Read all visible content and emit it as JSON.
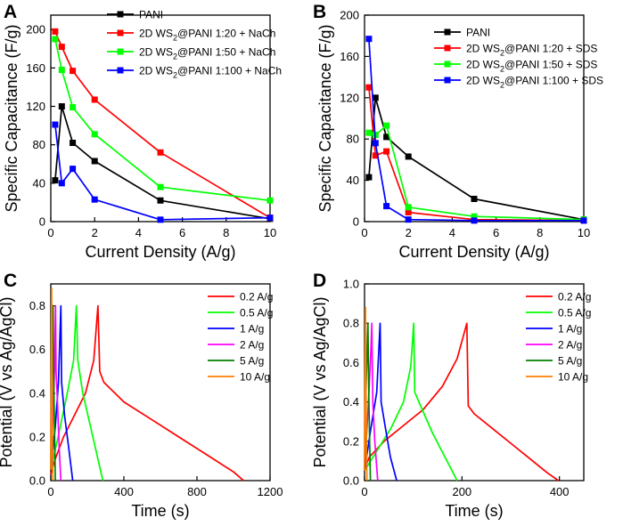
{
  "chart_data": [
    {
      "panel": "A",
      "type": "line",
      "xlabel": "Current Density (A/g)",
      "ylabel": "Specific Capacitance (F/g)",
      "xlim": [
        0,
        10
      ],
      "ylim": [
        0,
        215
      ],
      "xticks": [
        "0",
        "2",
        "4",
        "6",
        "8",
        "10"
      ],
      "yticks": [
        "0",
        "40",
        "80",
        "120",
        "160",
        "200"
      ],
      "legend_position": "top-right",
      "series": [
        {
          "name": "PANI",
          "legend": {
            "pre": "PANI",
            "sub": "",
            "post": ""
          },
          "color": "#000000",
          "x": [
            0.2,
            0.5,
            1,
            2,
            5,
            10
          ],
          "y": [
            43,
            120,
            82,
            63,
            22,
            3
          ]
        },
        {
          "name": "2D WS2@PANI 1:20 + NaCh",
          "legend": {
            "pre": "2D WS",
            "sub": "2",
            "post": "@PANI 1:20 + NaCh"
          },
          "color": "#ff0000",
          "x": [
            0.2,
            0.5,
            1,
            2,
            5,
            10
          ],
          "y": [
            198,
            182,
            157,
            127,
            72,
            4
          ]
        },
        {
          "name": "2D WS2@PANI 1:50 + NaCh",
          "legend": {
            "pre": "2D WS",
            "sub": "2",
            "post": "@PANI 1:50 + NaCh"
          },
          "color": "#00ff00",
          "x": [
            0.2,
            0.5,
            1,
            2,
            5,
            10
          ],
          "y": [
            190,
            158,
            119,
            91,
            36,
            22
          ]
        },
        {
          "name": "2D WS2@PANI 1:100 + NaCh",
          "legend": {
            "pre": "2D WS",
            "sub": "2",
            "post": "@PANI 1:100 + NaCh"
          },
          "color": "#0000ff",
          "x": [
            0.2,
            0.5,
            1,
            2,
            5,
            10
          ],
          "y": [
            101,
            40,
            55,
            23,
            2,
            4
          ]
        }
      ]
    },
    {
      "panel": "B",
      "type": "line",
      "xlabel": "Current Density (A/g)",
      "ylabel": "Specific Capacitance (F/g)",
      "xlim": [
        0,
        10
      ],
      "ylim": [
        0,
        200
      ],
      "xticks": [
        "0",
        "2",
        "4",
        "6",
        "8",
        "10"
      ],
      "yticks": [
        "0",
        "40",
        "80",
        "120",
        "160",
        "200"
      ],
      "legend_position": "top-right",
      "series": [
        {
          "name": "PANI",
          "legend": {
            "pre": "PANI",
            "sub": "",
            "post": ""
          },
          "color": "#000000",
          "x": [
            0.2,
            0.5,
            1,
            2,
            5,
            10
          ],
          "y": [
            43,
            120,
            82,
            63,
            22,
            2
          ]
        },
        {
          "name": "2D WS2@PANI 1:20 + SDS",
          "legend": {
            "pre": "2D WS",
            "sub": "2",
            "post": "@PANI 1:20 + SDS"
          },
          "color": "#ff0000",
          "x": [
            0.2,
            0.5,
            1,
            2,
            5,
            10
          ],
          "y": [
            130,
            64,
            68,
            9,
            2,
            1
          ]
        },
        {
          "name": "2D WS2@PANI 1:50 + SDS",
          "legend": {
            "pre": "2D WS",
            "sub": "2",
            "post": "@PANI 1:50 + SDS"
          },
          "color": "#00ff00",
          "x": [
            0.2,
            0.5,
            1,
            2,
            5,
            10
          ],
          "y": [
            86,
            84,
            93,
            14,
            5,
            2
          ]
        },
        {
          "name": "2D WS2@PANI 1:100 + SDS",
          "legend": {
            "pre": "2D WS",
            "sub": "2",
            "post": "@PANI 1:100 + SDS"
          },
          "color": "#0000ff",
          "x": [
            0.2,
            0.5,
            1,
            2,
            5,
            10
          ],
          "y": [
            177,
            76,
            15,
            2,
            1,
            1
          ]
        }
      ]
    },
    {
      "panel": "C",
      "type": "line",
      "xlabel": "Time (s)",
      "ylabel": "Potential (V vs Ag/AgCl)",
      "xlim": [
        0,
        1200
      ],
      "ylim": [
        0,
        0.9
      ],
      "xticks": [
        "0",
        "400",
        "800",
        "1200"
      ],
      "yticks": [
        "0.0",
        "0.2",
        "0.4",
        "0.6",
        "0.8"
      ],
      "legend_position": "top-right",
      "series": [
        {
          "name": "0.2 A/g",
          "color": "#ff0000",
          "x": [
            0,
            25,
            70,
            130,
            190,
            235,
            258,
            268,
            290,
            400,
            550,
            700,
            850,
            1000,
            1055
          ],
          "y": [
            0.03,
            0.1,
            0.2,
            0.3,
            0.4,
            0.55,
            0.8,
            0.5,
            0.45,
            0.36,
            0.28,
            0.2,
            0.12,
            0.04,
            0
          ]
        },
        {
          "name": "0.5 A/g",
          "color": "#00ff00",
          "x": [
            0,
            40,
            90,
            125,
            140,
            148,
            175,
            230,
            285
          ],
          "y": [
            0.05,
            0.2,
            0.4,
            0.55,
            0.8,
            0.55,
            0.4,
            0.2,
            0
          ]
        },
        {
          "name": "1 A/g",
          "color": "#0000ff",
          "x": [
            0,
            25,
            42,
            55,
            59,
            75,
            98,
            120
          ],
          "y": [
            0.05,
            0.25,
            0.45,
            0.8,
            0.45,
            0.3,
            0.15,
            0
          ]
        },
        {
          "name": "2 A/g",
          "color": "#ff00ff",
          "x": [
            0,
            12,
            20,
            26,
            29,
            37,
            46,
            55
          ],
          "y": [
            0.05,
            0.3,
            0.5,
            0.8,
            0.5,
            0.35,
            0.15,
            0
          ]
        },
        {
          "name": "5 A/g",
          "color": "#008000",
          "x": [
            0,
            5,
            10,
            12,
            15,
            20,
            25
          ],
          "y": [
            0.05,
            0.4,
            0.6,
            0.8,
            0.5,
            0.25,
            0
          ]
        },
        {
          "name": "10 A/g",
          "color": "#ff8000",
          "x": [
            0,
            2,
            5,
            7,
            9,
            11
          ],
          "y": [
            0.05,
            0.4,
            0.88,
            0.5,
            0.25,
            0
          ]
        }
      ]
    },
    {
      "panel": "D",
      "type": "line",
      "xlabel": "Time (s)",
      "ylabel": "Potential (V vs Ag/AgCl)",
      "xlim": [
        0,
        450
      ],
      "ylim": [
        0,
        1.0
      ],
      "xticks": [
        "0",
        "200",
        "400"
      ],
      "yticks": [
        "0.0",
        "0.2",
        "0.4",
        "0.6",
        "0.8",
        "1.0"
      ],
      "legend_position": "top-right",
      "series": [
        {
          "name": "0.2 A/g",
          "color": "#ff0000",
          "x": [
            0,
            10,
            40,
            80,
            120,
            160,
            190,
            210,
            213,
            225,
            260,
            300,
            340,
            375,
            398
          ],
          "y": [
            0.06,
            0.12,
            0.2,
            0.28,
            0.36,
            0.48,
            0.62,
            0.8,
            0.38,
            0.34,
            0.27,
            0.19,
            0.11,
            0.04,
            0
          ]
        },
        {
          "name": "0.5 A/g",
          "color": "#00ff00",
          "x": [
            0,
            25,
            55,
            80,
            95,
            101,
            103,
            115,
            140,
            165,
            190
          ],
          "y": [
            0.05,
            0.15,
            0.27,
            0.4,
            0.58,
            0.8,
            0.45,
            0.38,
            0.24,
            0.12,
            0
          ]
        },
        {
          "name": "1 A/g",
          "color": "#0000ff",
          "x": [
            0,
            12,
            25,
            32,
            34,
            42,
            53,
            66
          ],
          "y": [
            0.05,
            0.25,
            0.45,
            0.8,
            0.4,
            0.28,
            0.12,
            0
          ]
        },
        {
          "name": "2 A/g",
          "color": "#ff00ff",
          "x": [
            0,
            7,
            12,
            15,
            17,
            21,
            27
          ],
          "y": [
            0.05,
            0.35,
            0.6,
            0.8,
            0.4,
            0.2,
            0
          ]
        },
        {
          "name": "5 A/g",
          "color": "#008000",
          "x": [
            0,
            3,
            6,
            7,
            9,
            12
          ],
          "y": [
            0.05,
            0.45,
            0.72,
            0.8,
            0.4,
            0
          ]
        },
        {
          "name": "10 A/g",
          "color": "#ff8000",
          "x": [
            0,
            1,
            2,
            3,
            4,
            5
          ],
          "y": [
            0.05,
            0.5,
            0.88,
            0.5,
            0.2,
            0
          ]
        }
      ]
    }
  ]
}
